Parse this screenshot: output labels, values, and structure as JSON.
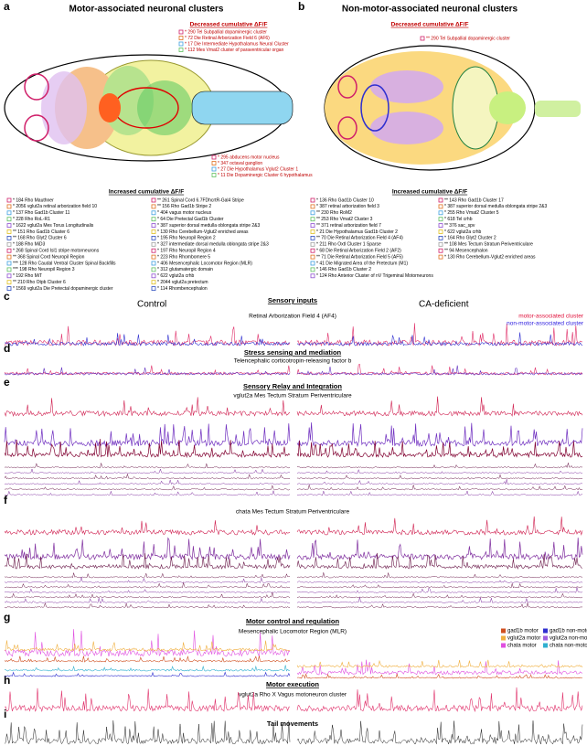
{
  "panels": [
    {
      "label": "a",
      "title": "Motor-associated neuronal clusters",
      "decreased_heading": "Decreased cumulative ΔF/F",
      "decreased": [
        "* 290 Tel Subpallial dopaminergic cluster",
        "* 72 Die Retinal Arborization Field 6 (AF6)",
        "* 17 Die Intermediate Hypothalamus Neural Cluster",
        "* 112 Mes Vmat2 cluster of paraventricular organ"
      ],
      "brain_labels": [
        "* 295 abducens motor nucleus",
        "* 347 octaval ganglion",
        "* 27 Die Hypothalamus Vglut2 Cluster 1",
        "* 11 Die Dopaminergic Cluster 6 hypothalamus"
      ],
      "increased_heading": "Increased cumulative ΔF/F",
      "increased_col1": [
        "* 184 Rho Mauthner",
        "* 2056 vglut2a retinal arborization field 10",
        "* 137 Rho Gad1b Cluster 11",
        "* 228 Rho RoL-R1",
        "* 1622 vglut2a Mes Torus Longitudinalis",
        "** 151 Rho Gad1b Cluster 6",
        "** 168 Rho Glyt2 Cluster 6",
        "* 188 Rho MiD3",
        "* 268 Spinal Cord Isl1 stripe motorneurons",
        "** 368 Spinal Cord Neuropil Region",
        "*** 128 Rho Caudal Ventral Cluster Spinal Backfills",
        "*** 198 Rho Neuropil Region 3",
        "* 192 Rho MiT",
        "** 210 Rho Otpb Cluster 6",
        "* 1569 vglut2a Die Pretectal dopaminergic cluster"
      ],
      "increased_col2": [
        "** 261 Spinal Cord 6.7FDhcrtR-Gal4 Stripe",
        "** 156 Rho Gad1b Stripe 2",
        "* 404 vagus motor nucleus",
        "* 64 Die Pretectal Gad1b Cluster",
        "* 387 superior dorsal medulla oblongata stripe 2&3",
        "* 130 Rho Cerebellum-Vglut2 enriched areas",
        "* 195 Rho Neuropil Region 2",
        "* 327 intermediate dorsal medulla oblongata stripe 2&3",
        "* 197 Rho Neuropil Region 4",
        "* 223 Rho Rhombomere 5",
        "* 406 Mesencephalic Locomotor Region (MLR)",
        "* 312 glutamatergic domain",
        "* 622 vglut2a crhb",
        "* 2044 vglut2a pretectum",
        "* 114 Rhombencephalon"
      ]
    },
    {
      "label": "b",
      "title": "Non-motor-associated neuronal clusters",
      "decreased_heading": "Decreased cumulative ΔF/F",
      "decreased": [
        "** 290 Tel Subpallial dopaminergic cluster"
      ],
      "increased_heading": "Increased cumulative ΔF/F",
      "increased_col1": [
        "* 136 Rho Gad1b Cluster 10",
        "* 387 retinal arborization field 3",
        "** 230 Rho RoM2",
        "** 253 Rho Vmat2 Cluster 3",
        "** 371 retinal arborization field 7",
        "* 21 Die Hypothalamus Gad1b Cluster 2",
        "** 70 Die Retinal Arborization Field 4 (AF4)",
        "* 211 Rho Oxtl Cluster 1 Sparse",
        "* 68 Die Retinal Arborization Field 2 (AF2)",
        "** 71 Die Retinal Arborization Field 5 (AF5)",
        "* 41 Die Migrated Area of the Pretectum (M1)",
        "* 146 Rho Gad1b Cluster 2",
        "* 124 Rho Anterior Cluster of nV Trigeminal Motorneurons"
      ],
      "increased_col2": [
        "** 143 Rho Gad1b Cluster 17",
        "* 387 superior dorsal medulla oblongata stripe 2&3",
        "* 255 Rho Vmat2 Cluster 5",
        "* 618 Tel crhb",
        "** 376 sac_spv",
        "* 622 vglut2a crhb",
        "* 164 Rho Glyt2 Cluster 2",
        "** 108 Mes Tectum Stratum Periventriculare",
        "** 94 Mesencephalon",
        "* 130 Rho Cerebellum-Vglut2 enriched areas"
      ]
    }
  ],
  "traces": {
    "control": "Control",
    "deficient": "CA-deficient",
    "legend_c": [
      "motor-associated cluster",
      "non-motor-associated cluster"
    ],
    "legend_g": [
      "gad1b motor",
      "gad1b non-motor",
      "vglut2a motor",
      "vglut2a non-motor",
      "chata motor",
      "chata non-motor"
    ],
    "sections": [
      {
        "label": "c",
        "heading": "Sensory inputs",
        "subtitle": "Retinal Arborization Field 4 (AF4)"
      },
      {
        "label": "d",
        "heading": "Stress sensing and mediation",
        "subtitle": "Telencephalic corticotropin-releasing factor b"
      },
      {
        "label": "e",
        "heading": "Sensory Relay and Integration",
        "subtitle": "vglut2a Mes Tectum Stratum Periventriculare"
      },
      {
        "label": "f",
        "subtitle": "chata Mes Tectum Stratum Periventriculare"
      },
      {
        "label": "g",
        "heading": "Motor control and regulation",
        "subtitle": "Mesencephalic Locomotor Region (MLR)"
      },
      {
        "label": "h",
        "heading": "Motor execution",
        "subtitle": "vglut2a Rho X Vagus motoneuron cluster"
      },
      {
        "label": "i",
        "heading": "Tail movements"
      }
    ]
  }
}
